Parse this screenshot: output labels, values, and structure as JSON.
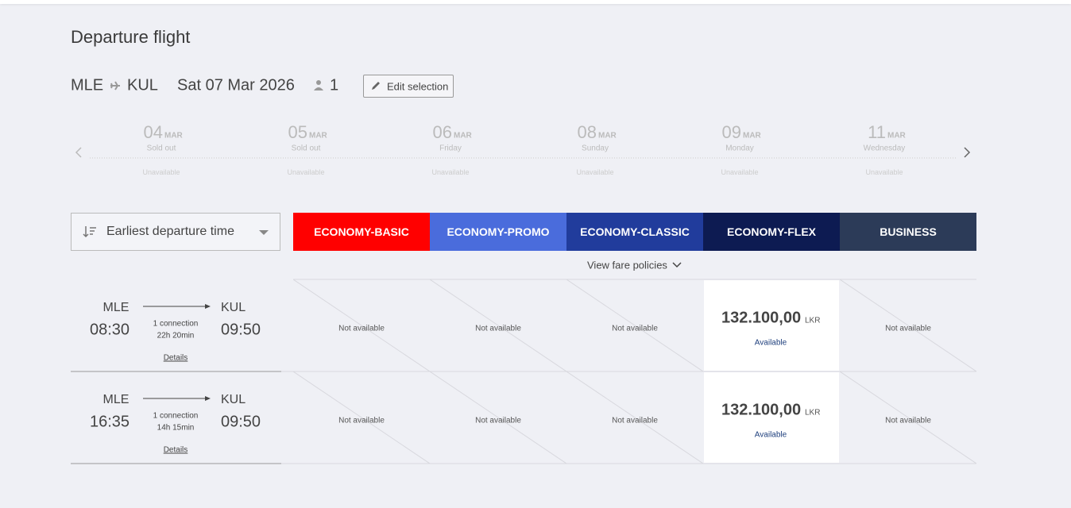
{
  "header": {
    "title": "Departure flight",
    "origin": "MLE",
    "destination": "KUL",
    "date": "Sat 07 Mar 2026",
    "passengers": "1",
    "edit": "Edit selection"
  },
  "dates": [
    {
      "day": "04",
      "month": "MAR",
      "status": "Sold out",
      "availability": "Unavailable"
    },
    {
      "day": "05",
      "month": "MAR",
      "status": "Sold out",
      "availability": "Unavailable"
    },
    {
      "day": "06",
      "month": "MAR",
      "status": "Friday",
      "availability": "Unavailable"
    },
    {
      "day": "08",
      "month": "MAR",
      "status": "Sunday",
      "availability": "Unavailable"
    },
    {
      "day": "09",
      "month": "MAR",
      "status": "Monday",
      "availability": "Unavailable"
    },
    {
      "day": "11",
      "month": "MAR",
      "status": "Wednesday",
      "availability": "Unavailable"
    }
  ],
  "sort": "Earliest departure time",
  "fares": [
    {
      "name": "ECONOMY-BASIC",
      "color": "#ff0000"
    },
    {
      "name": "ECONOMY-PROMO",
      "color": "#4a6cdc"
    },
    {
      "name": "ECONOMY-CLASSIC",
      "color": "#213c9c"
    },
    {
      "name": "ECONOMY-FLEX",
      "color": "#0d1b52"
    },
    {
      "name": "BUSINESS",
      "color": "#2c3b58"
    }
  ],
  "fare_policies": "View fare policies",
  "flights": [
    {
      "from": "MLE",
      "depart": "08:30",
      "connection": "1 connection",
      "duration": "22h 20min",
      "to": "KUL",
      "arrive": "09:50",
      "details": "Details",
      "cells": [
        "Not available",
        "Not available",
        "Not available",
        {
          "price": "132.100,00",
          "currency": "LKR",
          "status": "Available"
        },
        "Not available"
      ]
    },
    {
      "from": "MLE",
      "depart": "16:35",
      "connection": "1 connection",
      "duration": "14h 15min",
      "to": "KUL",
      "arrive": "09:50",
      "details": "Details",
      "cells": [
        "Not available",
        "Not available",
        "Not available",
        {
          "price": "132.100,00",
          "currency": "LKR",
          "status": "Available"
        },
        "Not available"
      ]
    }
  ]
}
